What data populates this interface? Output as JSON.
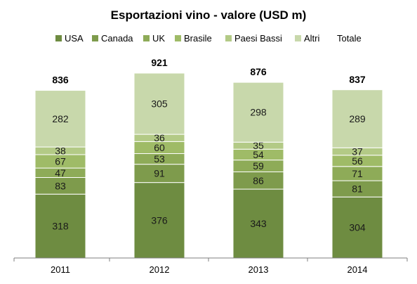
{
  "chart_data": {
    "type": "bar",
    "stacked": true,
    "title": "Esportazioni vino - valore (USD m)",
    "categories": [
      "2011",
      "2012",
      "2013",
      "2014"
    ],
    "series": [
      {
        "name": "USA",
        "color": "#6e8c41",
        "values": [
          318,
          376,
          343,
          304
        ]
      },
      {
        "name": "Canada",
        "color": "#7e9b4c",
        "values": [
          83,
          91,
          86,
          81
        ]
      },
      {
        "name": "UK",
        "color": "#8eab58",
        "values": [
          47,
          53,
          59,
          71
        ]
      },
      {
        "name": "Brasile",
        "color": "#9fbb67",
        "values": [
          67,
          60,
          54,
          56
        ]
      },
      {
        "name": "Paesi Bassi",
        "color": "#b3ca86",
        "values": [
          38,
          36,
          35,
          37
        ]
      },
      {
        "name": "Altri",
        "color": "#c8d8ab",
        "values": [
          282,
          305,
          298,
          289
        ]
      }
    ],
    "totals": {
      "name": "Totale",
      "values": [
        836,
        921,
        876,
        837
      ]
    },
    "legend_position": "top",
    "grid": false,
    "ylim": [
      0,
      921
    ]
  }
}
